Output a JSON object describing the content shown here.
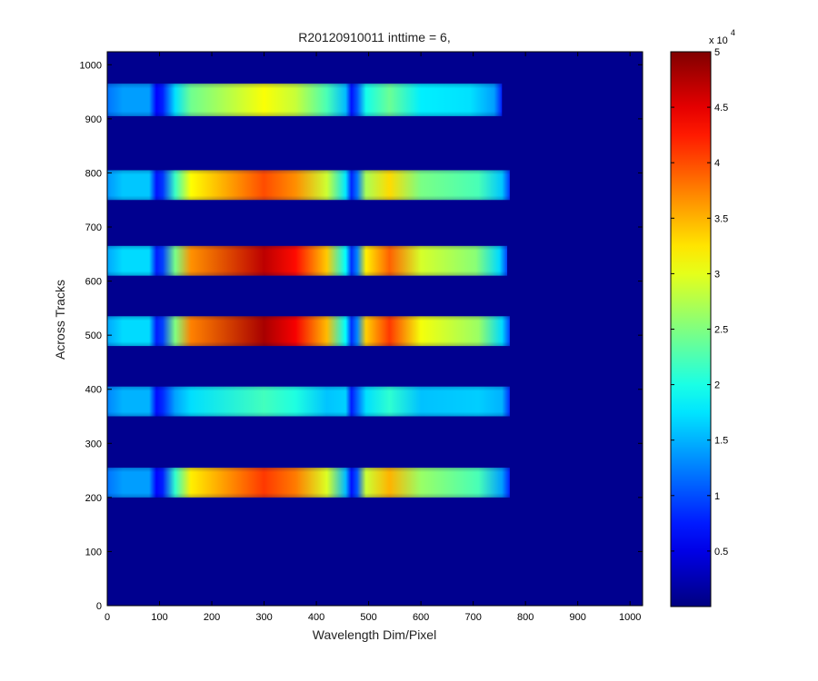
{
  "chart_data": {
    "type": "heatmap",
    "title": "R20120910011 inttime = 6,",
    "xlabel": "Wavelength Dim/Pixel",
    "ylabel": "Across Tracks",
    "xlim": [
      0,
      1024
    ],
    "ylim": [
      0,
      1024
    ],
    "x_ticks": [
      0,
      100,
      200,
      300,
      400,
      500,
      600,
      700,
      800,
      900,
      1000
    ],
    "y_ticks": [
      0,
      100,
      200,
      300,
      400,
      500,
      600,
      700,
      800,
      900,
      1000
    ],
    "grid": false,
    "colormap": "jet",
    "background_value": 0,
    "colorbar": {
      "range": [
        0,
        50000
      ],
      "ticks": [
        0.5,
        1,
        1.5,
        2,
        2.5,
        3,
        3.5,
        4,
        4.5,
        5
      ],
      "tick_labels": [
        "0.5",
        "1",
        "1.5",
        "2",
        "2.5",
        "3",
        "3.5",
        "4",
        "4.5",
        "5"
      ],
      "multiplier_base": "x 10",
      "multiplier_exponent": "4"
    },
    "bands": [
      {
        "y_range": [
          200,
          255
        ],
        "x_range": [
          0,
          770
        ],
        "gaps_x": [
          100,
          470
        ],
        "left_value": 14000,
        "mid_peak_value": 41000,
        "right_peak_value": 35000,
        "peak_x": 300,
        "right_peak_x": 540
      },
      {
        "y_range": [
          350,
          405
        ],
        "x_range": [
          0,
          770
        ],
        "gaps_x": [
          100,
          470
        ],
        "left_value": 15000,
        "mid_peak_value": 22000,
        "right_peak_value": 21000,
        "peak_x": 300,
        "right_peak_x": 540
      },
      {
        "y_range": [
          480,
          535
        ],
        "x_range": [
          0,
          770
        ],
        "gaps_x": [
          100,
          470
        ],
        "left_value": 17000,
        "mid_peak_value": 48000,
        "right_peak_value": 41000,
        "peak_x": 300,
        "right_peak_x": 540
      },
      {
        "y_range": [
          610,
          665
        ],
        "x_range": [
          0,
          765
        ],
        "gaps_x": [
          100,
          470
        ],
        "left_value": 17000,
        "mid_peak_value": 47000,
        "right_peak_value": 39000,
        "peak_x": 300,
        "right_peak_x": 540
      },
      {
        "y_range": [
          750,
          805
        ],
        "x_range": [
          0,
          770
        ],
        "gaps_x": [
          100,
          470
        ],
        "left_value": 16000,
        "mid_peak_value": 40000,
        "right_peak_value": 33000,
        "peak_x": 300,
        "right_peak_x": 540
      },
      {
        "y_range": [
          905,
          965
        ],
        "x_range": [
          0,
          755
        ],
        "gaps_x": [
          100,
          470
        ],
        "left_value": 14000,
        "mid_peak_value": 31000,
        "right_peak_value": 24000,
        "peak_x": 300,
        "right_peak_x": 540
      }
    ]
  }
}
